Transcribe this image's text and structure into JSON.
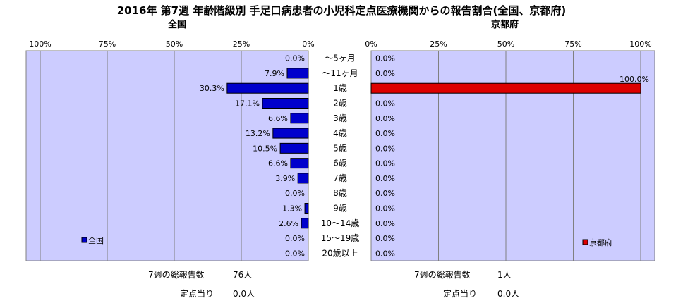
{
  "title": "2016年 第7週 年齢階級別 手足口病患者の小児科定点医療機関からの報告割合(全国、京都府)",
  "chart_data": [
    {
      "type": "bar",
      "orientation": "horizontal",
      "title": "全国",
      "categories": [
        "～5ヶ月",
        "～11ヶ月",
        "1歳",
        "2歳",
        "3歳",
        "4歳",
        "5歳",
        "6歳",
        "7歳",
        "8歳",
        "9歳",
        "10～14歳",
        "15～19歳",
        "20歳以上"
      ],
      "series": [
        {
          "name": "全国",
          "values": [
            0.0,
            7.9,
            30.3,
            17.1,
            6.6,
            13.2,
            10.5,
            6.6,
            3.9,
            0.0,
            1.3,
            2.6,
            0.0,
            0.0
          ],
          "labels": [
            "0.0%",
            "7.9%",
            "30.3%",
            "17.1%",
            "6.6%",
            "13.2%",
            "10.5%",
            "6.6%",
            "3.9%",
            "0.0%",
            "1.3%",
            "2.6%",
            "0.0%",
            "0.0%"
          ],
          "color": "#0000cc"
        }
      ],
      "xlim": [
        100,
        0
      ],
      "xticks": [
        "100%",
        "75%",
        "50%",
        "25%",
        "0%"
      ],
      "legend": "bottom-left",
      "grid": true
    },
    {
      "type": "bar",
      "orientation": "horizontal",
      "title": "京都府",
      "categories": [
        "～5ヶ月",
        "～11ヶ月",
        "1歳",
        "2歳",
        "3歳",
        "4歳",
        "5歳",
        "6歳",
        "7歳",
        "8歳",
        "9歳",
        "10～14歳",
        "15～19歳",
        "20歳以上"
      ],
      "series": [
        {
          "name": "京都府",
          "values": [
            0.0,
            0.0,
            100.0,
            0.0,
            0.0,
            0.0,
            0.0,
            0.0,
            0.0,
            0.0,
            0.0,
            0.0,
            0.0,
            0.0
          ],
          "labels": [
            "0.0%",
            "0.0%",
            "100.0%",
            "0.0%",
            "0.0%",
            "0.0%",
            "0.0%",
            "0.0%",
            "0.0%",
            "0.0%",
            "0.0%",
            "0.0%",
            "0.0%",
            "0.0%"
          ],
          "color": "#dd0000"
        }
      ],
      "xlim": [
        0,
        100
      ],
      "xticks": [
        "0%",
        "25%",
        "50%",
        "75%",
        "100%"
      ],
      "legend": "bottom-right",
      "grid": true
    }
  ],
  "footer": {
    "national": {
      "total_label": "7週の総報告数",
      "total_value": "76人",
      "per_label": "定点当り",
      "per_value": "0.0人"
    },
    "kyoto": {
      "total_label": "7週の総報告数",
      "total_value": "1人",
      "per_label": "定点当り",
      "per_value": "0.0人"
    }
  },
  "colors": {
    "plot_bg": "#ccccff",
    "national_bar": "#0000cc",
    "kyoto_bar": "#dd0000"
  }
}
